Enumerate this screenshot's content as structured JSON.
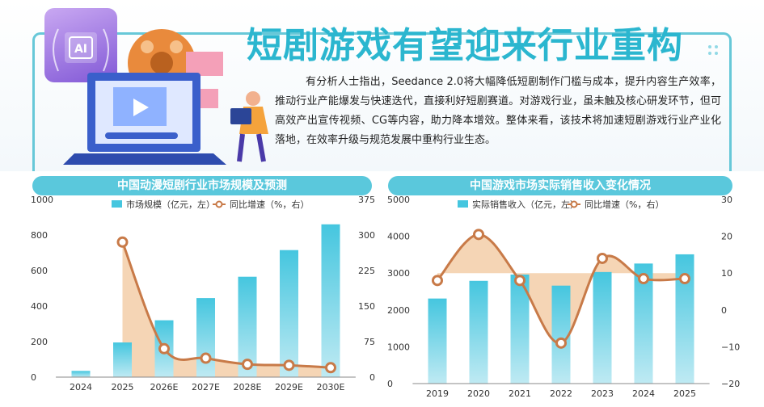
{
  "header": {
    "title": "短剧游戏有望迎来行业重构",
    "ai_badge": "AI",
    "body": "有分析人士指出，Seedance 2.0将大幅降低短剧制作门槛与成本，提升内容生产效率，推动行业产能爆发与快速迭代，直接利好短剧赛道。对游戏行业，虽未触及核心研发环节，但可高效产出宣传视频、CG等内容，助力降本增效。整体来看，该技术将加速短剧游戏行业产业化落地，在效率升级与规范发展中重构行业生态。"
  },
  "chart_data": [
    {
      "type": "bar",
      "title": "中国动漫短剧行业市场规模及预测",
      "categories": [
        "2024",
        "2025",
        "2026E",
        "2027E",
        "2028E",
        "2029E",
        "2030E"
      ],
      "series": [
        {
          "name": "市场规模（亿元，左）",
          "type": "bar",
          "axis": "left",
          "values": [
            35,
            195,
            320,
            445,
            565,
            715,
            860
          ]
        },
        {
          "name": "同比增速（%，右）",
          "type": "line",
          "axis": "right",
          "values": [
            null,
            285,
            60,
            40,
            27,
            25,
            20
          ]
        }
      ],
      "left_axis": {
        "ticks": [
          "0",
          "200",
          "400",
          "600",
          "800",
          "1000"
        ],
        "range": [
          0,
          1000
        ]
      },
      "right_axis": {
        "ticks": [
          "0",
          "75",
          "150",
          "225",
          "300",
          "375"
        ],
        "range": [
          0,
          375
        ]
      },
      "colors": {
        "bar": "#45c6df",
        "line": "#c87a48",
        "area": "#f2c79c"
      }
    },
    {
      "type": "bar",
      "title": "中国游戏市场实际销售收入变化情况",
      "categories": [
        "2019",
        "2020",
        "2021",
        "2022",
        "2023",
        "2024",
        "2025"
      ],
      "series": [
        {
          "name": "实际销售收入（亿元，左）",
          "type": "bar",
          "axis": "left",
          "values": [
            2310,
            2790,
            2960,
            2660,
            3030,
            3260,
            3510
          ]
        },
        {
          "name": "同比增速（%，右）",
          "type": "line",
          "axis": "right",
          "values": [
            8,
            20.5,
            8,
            -9,
            14,
            8.5,
            8.5
          ]
        }
      ],
      "left_axis": {
        "ticks": [
          "0",
          "1000",
          "2000",
          "3000",
          "4000",
          "5000"
        ],
        "range": [
          0,
          5000
        ]
      },
      "right_axis": {
        "ticks": [
          "−20",
          "−10",
          "0",
          "10",
          "20",
          "30"
        ],
        "range": [
          -20,
          30
        ]
      },
      "colors": {
        "bar": "#45c6df",
        "line": "#c87a48",
        "area": "#f2c79c"
      }
    }
  ]
}
